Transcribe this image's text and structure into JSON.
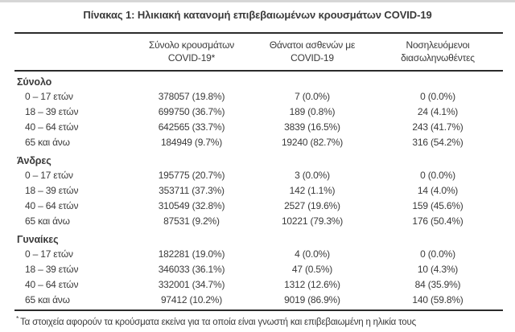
{
  "title": "Πίνακας 1: Ηλικιακή κατανομή επιβεβαιωμένων κρουσμάτων COVID-19",
  "table": {
    "columns": [
      {
        "line1": "Σύνολο κρουσμάτων",
        "line2": "COVID-19*"
      },
      {
        "line1": "Θάνατοι ασθενών με",
        "line2": "COVID-19"
      },
      {
        "line1": "Νοσηλευόμενοι",
        "line2": "διασωληνωθέντες"
      }
    ],
    "sections": [
      {
        "label": "Σύνολο",
        "rows": [
          {
            "age": "0 – 17 ετών",
            "cases": "378057 (19.8%)",
            "deaths": "7 (0.0%)",
            "intubated": "0 (0.0%)"
          },
          {
            "age": "18 – 39 ετών",
            "cases": "699750 (36.7%)",
            "deaths": "189 (0.8%)",
            "intubated": "24 (4.1%)"
          },
          {
            "age": "40 – 64 ετών",
            "cases": "642565 (33.7%)",
            "deaths": "3839 (16.5%)",
            "intubated": "243 (41.7%)"
          },
          {
            "age": "65 και άνω",
            "cases": "184949 (9.7%)",
            "deaths": "19240 (82.7%)",
            "intubated": "316 (54.2%)"
          }
        ]
      },
      {
        "label": "Άνδρες",
        "rows": [
          {
            "age": "0 – 17 ετών",
            "cases": "195775 (20.7%)",
            "deaths": "3 (0.0%)",
            "intubated": "0 (0.0%)"
          },
          {
            "age": "18 – 39 ετών",
            "cases": "353711 (37.3%)",
            "deaths": "142 (1.1%)",
            "intubated": "14 (4.0%)"
          },
          {
            "age": "40 – 64 ετών",
            "cases": "310549 (32.8%)",
            "deaths": "2527 (19.6%)",
            "intubated": "159 (45.6%)"
          },
          {
            "age": "65 και άνω",
            "cases": "87531 (9.2%)",
            "deaths": "10221 (79.3%)",
            "intubated": "176 (50.4%)"
          }
        ]
      },
      {
        "label": "Γυναίκες",
        "rows": [
          {
            "age": "0 – 17 ετών",
            "cases": "182281 (19.0%)",
            "deaths": "4 (0.0%)",
            "intubated": "0 (0.0%)"
          },
          {
            "age": "18 – 39 ετών",
            "cases": "346033 (36.1%)",
            "deaths": "47 (0.5%)",
            "intubated": "10 (4.3%)"
          },
          {
            "age": "40 – 64 ετών",
            "cases": "332001 (34.7%)",
            "deaths": "1312 (12.6%)",
            "intubated": "84 (35.9%)"
          },
          {
            "age": "65 και άνω",
            "cases": "97412 (10.2%)",
            "deaths": "9019 (86.9%)",
            "intubated": "140 (59.8%)"
          }
        ]
      }
    ]
  },
  "footnote": {
    "symbol": "*",
    "text": "Τα στοιχεία αφορούν τα κρούσματα εκείνα για τα οποία είναι γνωστή και επιβεβαιωμένη η ηλικία τους"
  },
  "colors": {
    "text": "#3a3a3a",
    "rule": "#2b2b2b",
    "background": "#ffffff"
  }
}
